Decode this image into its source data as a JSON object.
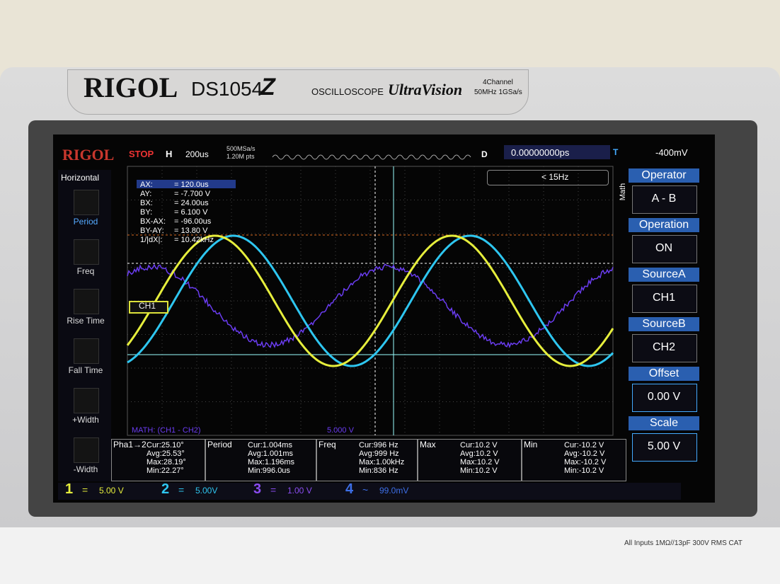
{
  "bezel": {
    "brand": "RIGOL",
    "model": "DS1054",
    "model_mark": "Z",
    "product": "OSCILLOSCOPE",
    "series": "UltraVision",
    "channels": "4Channel",
    "specs": "50MHz  1GSa/s"
  },
  "status": {
    "brand": "RIGOL",
    "state": "STOP",
    "mode": "H",
    "timebase": "200us",
    "sample_rate": "500MSa/s",
    "points": "1.20M pts",
    "delay_label": "D",
    "delay": "0.00000000ps",
    "trigger_label": "T",
    "trigger_level": "-400mV"
  },
  "left_menu": {
    "title": "Horizontal",
    "items": [
      "Period",
      "Freq",
      "Rise Time",
      "Fall Time",
      "+Width",
      "-Width"
    ]
  },
  "cursor_readout": [
    [
      "AX:",
      "= 120.0us"
    ],
    [
      "AY:",
      "= -7.700 V"
    ],
    [
      "BX:",
      "= 24.00us"
    ],
    [
      "BY:",
      "= 6.100 V"
    ],
    [
      "BX-AX:",
      "= -96.00us"
    ],
    [
      "BY-AY:",
      "= 13.80 V"
    ],
    [
      "1/|dX|:",
      "= 10.42kHz"
    ]
  ],
  "trigger_info": "< 15Hz",
  "right_menu": {
    "side_label": "Math",
    "items": [
      {
        "label": "Operator",
        "value": "A - B"
      },
      {
        "label": "Operation",
        "value": "ON"
      },
      {
        "label": "SourceA",
        "value": "CH1"
      },
      {
        "label": "SourceB",
        "value": "CH2"
      },
      {
        "label": "Offset",
        "value": "0.00 V"
      },
      {
        "label": "Scale",
        "value": "5.00 V"
      }
    ]
  },
  "ch1_marker": "CH1",
  "math_label": "MATH: (CH1 - CH2)",
  "math_scale": "5.000 V",
  "measurements": [
    {
      "name": "Pha1→2",
      "lines": [
        "Cur:25.10°",
        "Avg:25.53°",
        "Max:28.19°",
        "Min:22.27°"
      ]
    },
    {
      "name": "Period",
      "lines": [
        "Cur:1.004ms",
        "Avg:1.001ms",
        "Max:1.196ms",
        "Min:996.0us"
      ]
    },
    {
      "name": "Freq",
      "lines": [
        "Cur:996 Hz",
        "Avg:999 Hz",
        "Max:1.00kHz",
        "Min:836 Hz"
      ]
    },
    {
      "name": "Max",
      "lines": [
        "Cur:10.2 V",
        "Avg:10.2 V",
        "Max:10.2 V",
        "Min:10.2 V"
      ]
    },
    {
      "name": "Min",
      "lines": [
        "Cur:-10.2 V",
        "Avg:-10.2 V",
        "Max:-10.2 V",
        "Min:-10.2 V"
      ]
    }
  ],
  "channels": [
    {
      "number": "1",
      "coupling": "=",
      "scale": "5.00 V"
    },
    {
      "number": "2",
      "coupling": "=",
      "scale": "5.00V"
    },
    {
      "number": "3",
      "coupling": "=",
      "scale": "1.00 V"
    },
    {
      "number": "4",
      "coupling": "~",
      "scale": "99.0mV"
    }
  ],
  "footer": "All Inputs 1MΩ//13pF 300V RMS CAT"
}
